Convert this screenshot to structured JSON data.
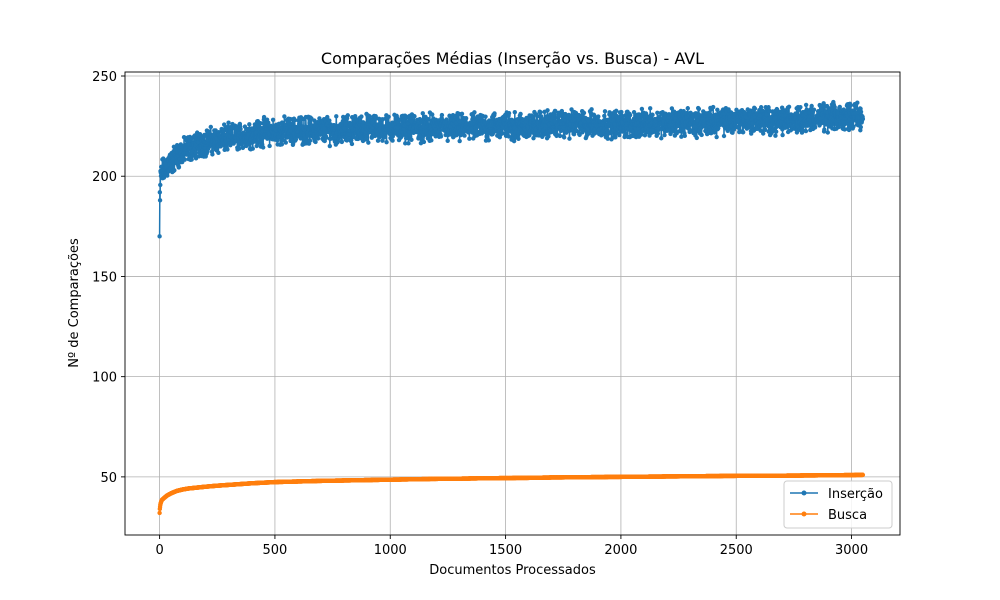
{
  "chart_data": {
    "type": "line",
    "title": "Comparações Médias (Inserção vs. Busca) - AVL",
    "xlabel": "Documentos Processados",
    "ylabel": "Nº de Comparações",
    "xlim": [
      -150,
      3210
    ],
    "ylim": [
      21,
      252
    ],
    "x_ticks": [
      0,
      500,
      1000,
      1500,
      2000,
      2500,
      3000
    ],
    "y_ticks": [
      50,
      100,
      150,
      200,
      250
    ],
    "grid": true,
    "legend_position": "lower right",
    "n_points": 3050,
    "series": [
      {
        "name": "Inserção",
        "color": "#1f77b4",
        "marker": "circle",
        "x": [
          0,
          1,
          2,
          3,
          5,
          8,
          10,
          15,
          20,
          25,
          30,
          40,
          50,
          60,
          75,
          100,
          125,
          150,
          175,
          200,
          250,
          300,
          350,
          400,
          450,
          500,
          600,
          700,
          800,
          900,
          1000,
          1100,
          1200,
          1300,
          1400,
          1500,
          1600,
          1700,
          1800,
          1900,
          2000,
          2100,
          2200,
          2300,
          2400,
          2500,
          2600,
          2700,
          2800,
          2900,
          3000,
          3049
        ],
        "y": [
          170,
          192,
          188,
          196,
          199,
          201,
          203,
          202,
          204,
          203,
          205,
          206,
          207,
          208,
          210,
          212,
          214,
          215,
          216,
          217,
          218,
          219,
          220,
          221,
          222,
          222,
          223,
          223,
          223,
          224,
          224,
          224,
          224,
          224,
          225,
          225,
          225,
          226,
          226,
          226,
          226,
          226,
          227,
          227,
          227,
          228,
          228,
          228,
          229,
          229,
          230,
          230
        ],
        "noise_range": [
          -9,
          9
        ]
      },
      {
        "name": "Busca",
        "color": "#ff7f0e",
        "marker": "circle",
        "x": [
          0,
          1,
          2,
          3,
          5,
          8,
          10,
          15,
          20,
          30,
          40,
          50,
          60,
          75,
          100,
          125,
          150,
          175,
          200,
          250,
          300,
          350,
          400,
          450,
          500,
          600,
          700,
          800,
          900,
          1000,
          1100,
          1200,
          1300,
          1400,
          1500,
          1600,
          1700,
          1800,
          1900,
          2000,
          2100,
          2200,
          2300,
          2400,
          2500,
          2600,
          2700,
          2800,
          2900,
          3000,
          3049
        ],
        "y": [
          32,
          34,
          35,
          36,
          37,
          38,
          38.5,
          39,
          39.5,
          40.5,
          41.2,
          41.8,
          42.3,
          43,
          43.7,
          44.2,
          44.5,
          44.8,
          45.1,
          45.6,
          46,
          46.4,
          46.8,
          47.1,
          47.4,
          47.7,
          48,
          48.2,
          48.4,
          48.6,
          48.8,
          49,
          49.1,
          49.3,
          49.4,
          49.5,
          49.7,
          49.8,
          49.9,
          50,
          50.1,
          50.2,
          50.3,
          50.4,
          50.5,
          50.6,
          50.6,
          50.7,
          50.8,
          50.9,
          51
        ]
      }
    ]
  }
}
